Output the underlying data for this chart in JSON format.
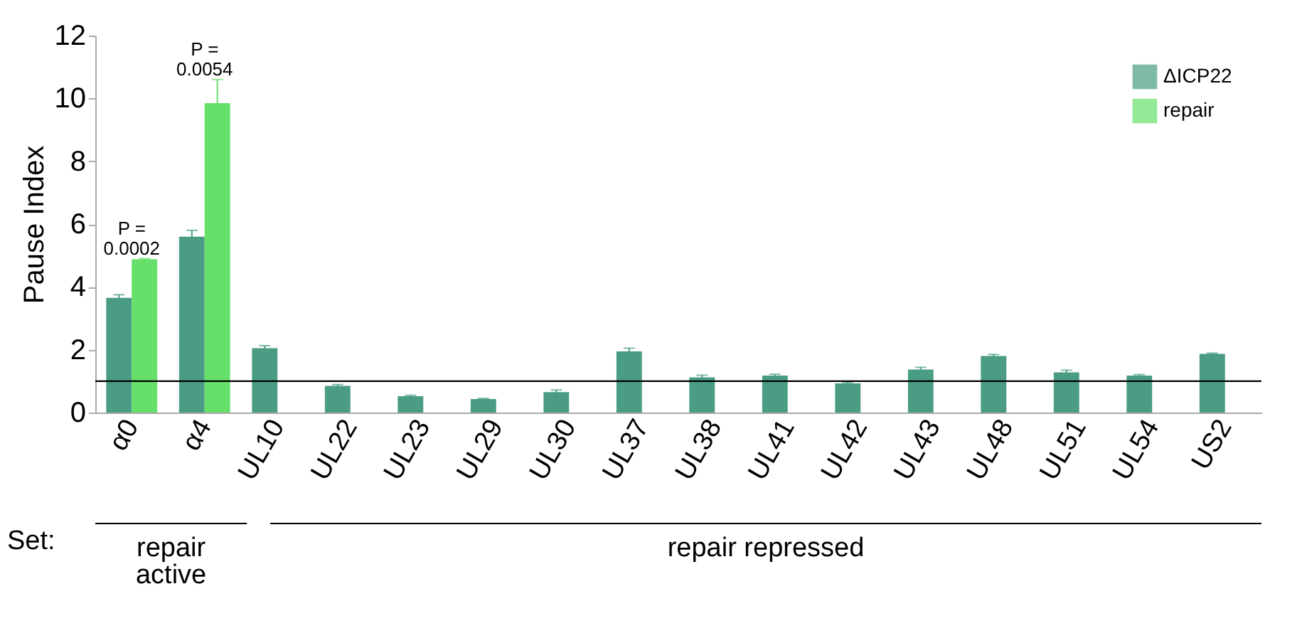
{
  "chart_data": {
    "type": "bar",
    "ylabel": "Pause Index",
    "categories": [
      "α0",
      "α4",
      "UL10",
      "UL22",
      "UL23",
      "UL29",
      "UL30",
      "UL37",
      "UL38",
      "UL41",
      "UL42",
      "UL43",
      "UL48",
      "UL51",
      "UL54",
      "US2"
    ],
    "series": [
      {
        "name": "ΔICP22",
        "color": "#4a9c84",
        "values": [
          3.65,
          5.6,
          2.05,
          0.85,
          0.52,
          0.43,
          0.65,
          1.95,
          1.12,
          1.18,
          0.93,
          1.37,
          1.8,
          1.28,
          1.18,
          1.87
        ],
        "errors": [
          0.1,
          0.2,
          0.08,
          0.04,
          0.03,
          0.02,
          0.07,
          0.1,
          0.07,
          0.04,
          0.03,
          0.07,
          0.05,
          0.07,
          0.03,
          0.02
        ]
      },
      {
        "name": "repair",
        "color": "#66e06a",
        "values": [
          4.88,
          9.85,
          null,
          null,
          null,
          null,
          null,
          null,
          null,
          null,
          null,
          null,
          null,
          null,
          null,
          null
        ],
        "errors": [
          0.02,
          0.75,
          null,
          null,
          null,
          null,
          null,
          null,
          null,
          null,
          null,
          null,
          null,
          null,
          null,
          null
        ]
      }
    ],
    "ylim": [
      0,
      12
    ],
    "yticks": [
      0,
      2,
      4,
      6,
      8,
      10,
      12
    ],
    "ref_lines": [
      {
        "axis": "y",
        "value": 1,
        "color": "#000000"
      }
    ],
    "annotations": [
      "P = 0.0002",
      "P = 0.0054",
      "Set:",
      "repair active",
      "repair repressed"
    ],
    "grid": false,
    "legend": "top right"
  }
}
